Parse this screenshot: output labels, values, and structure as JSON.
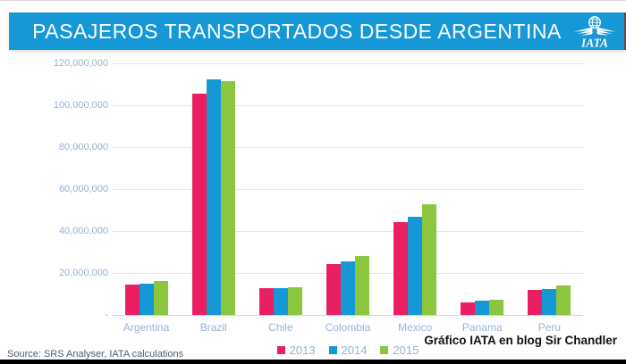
{
  "header": {
    "title": "PASAJEROS TRANSPORTADOS DESDE ARGENTINA",
    "background": "#1697d6",
    "logo_text": "IATA"
  },
  "chart_data": {
    "type": "bar",
    "title": "PASAJEROS TRANSPORTADOS DESDE ARGENTINA",
    "categories": [
      "Argentina",
      "Brazil",
      "Chile",
      "Colombia",
      "Mexico",
      "Panama",
      "Peru"
    ],
    "series": [
      {
        "name": "2013",
        "color": "#e91e63",
        "values": [
          14300000,
          105500000,
          12800000,
          24300000,
          44200000,
          5900000,
          11800000
        ]
      },
      {
        "name": "2014",
        "color": "#1697d6",
        "values": [
          15000000,
          112400000,
          12600000,
          25600000,
          46600000,
          6600000,
          12400000
        ]
      },
      {
        "name": "2015",
        "color": "#8cc63e",
        "values": [
          16200000,
          111500000,
          13200000,
          27900000,
          52600000,
          7400000,
          14000000
        ]
      }
    ],
    "xlabel": "",
    "ylabel": "",
    "ylim": [
      0,
      120000000
    ],
    "ytick_interval": 20000000,
    "ytick_labels": [
      "-",
      "20,000,000",
      "40,000,000",
      "60,000,000",
      "80,000,000",
      "100,000,000",
      "120,000,000"
    ],
    "grid": true,
    "legend_position": "bottom"
  },
  "footer": {
    "source": "Source: SRS Analyser, IATA calculations",
    "credit": "Gráfico IATA en blog Sir Chandler"
  }
}
